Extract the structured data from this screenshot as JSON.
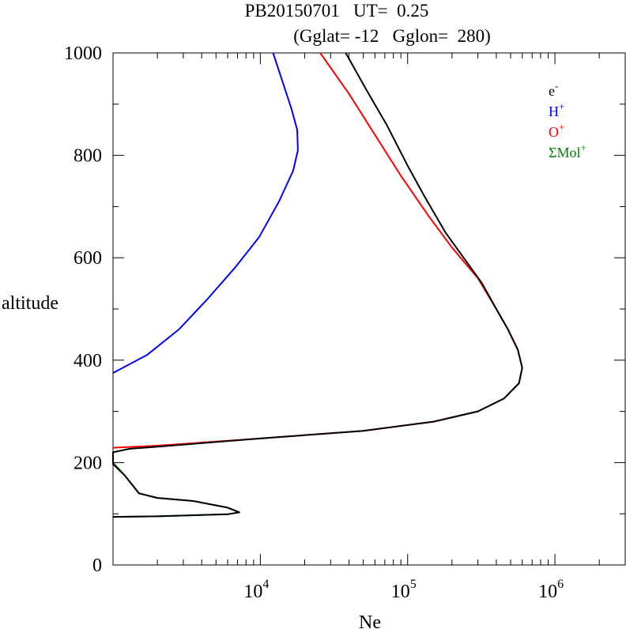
{
  "chart_data": {
    "type": "line",
    "title": "PB20150701   UT=  0.25",
    "subtitle": "(Gglat= -12   Gglon=  280)",
    "xlabel": "Ne",
    "ylabel": "altitude",
    "x_scale": "log",
    "xlim": [
      1000,
      3000000
    ],
    "ylim": [
      0,
      1000
    ],
    "x_major_ticks": [
      10000,
      100000,
      1000000
    ],
    "x_tick_labels": [
      {
        "base": "10",
        "exp": "4"
      },
      {
        "base": "10",
        "exp": "5"
      },
      {
        "base": "10",
        "exp": "6"
      }
    ],
    "y_major_ticks": [
      0,
      200,
      400,
      600,
      800,
      1000
    ],
    "y_tick_labels": [
      "0",
      "200",
      "400",
      "600",
      "800",
      "1000"
    ],
    "grid": false,
    "legend_position": "top-right",
    "legend": [
      {
        "base": "e",
        "sup": "-",
        "color": "#000000"
      },
      {
        "base": "H",
        "sup": "+",
        "color": "#0000ff"
      },
      {
        "base": "O",
        "sup": "+",
        "color": "#ff0000"
      },
      {
        "base": "ΣMol",
        "sup": "+",
        "color": "#008000"
      }
    ],
    "series": [
      {
        "color": "#0000ff",
        "points": [
          [
            1000,
            375
          ],
          [
            1700,
            410
          ],
          [
            2800,
            460
          ],
          [
            4400,
            520
          ],
          [
            6700,
            580
          ],
          [
            9800,
            640
          ],
          [
            13400,
            710
          ],
          [
            16700,
            770
          ],
          [
            18000,
            810
          ],
          [
            17800,
            850
          ],
          [
            16300,
            890
          ],
          [
            14300,
            940
          ],
          [
            12200,
            1000
          ]
        ]
      },
      {
        "color": "#ff0000",
        "points": [
          [
            1000,
            229
          ],
          [
            2000,
            233
          ],
          [
            10000,
            247
          ],
          [
            50000,
            262
          ],
          [
            150000,
            280
          ],
          [
            300000,
            300
          ],
          [
            450000,
            325
          ],
          [
            570000,
            355
          ],
          [
            600000,
            385
          ],
          [
            560000,
            420
          ],
          [
            480000,
            460
          ],
          [
            400000,
            500
          ],
          [
            300000,
            560
          ],
          [
            200000,
            620
          ],
          [
            140000,
            680
          ],
          [
            90000,
            760
          ],
          [
            60000,
            840
          ],
          [
            40000,
            920
          ],
          [
            25500,
            1000
          ]
        ]
      },
      {
        "color": "#008000",
        "points": [
          [
            1000,
            200
          ],
          [
            1200,
            175
          ],
          [
            1500,
            140
          ],
          [
            2000,
            131
          ],
          [
            3500,
            125
          ],
          [
            6000,
            112
          ],
          [
            7200,
            103
          ],
          [
            6000,
            99
          ],
          [
            2000,
            95
          ],
          [
            1000,
            94
          ]
        ]
      },
      {
        "color": "#000000",
        "points": [
          [
            1000,
            94
          ],
          [
            2000,
            95
          ],
          [
            6000,
            99
          ],
          [
            7200,
            103
          ],
          [
            6000,
            112
          ],
          [
            3500,
            125
          ],
          [
            2000,
            131
          ],
          [
            1500,
            140
          ],
          [
            1200,
            175
          ],
          [
            1000,
            197
          ],
          [
            1000,
            220
          ],
          [
            1300,
            227
          ],
          [
            1800,
            230
          ],
          [
            10000,
            247
          ],
          [
            50000,
            262
          ],
          [
            150000,
            280
          ],
          [
            300000,
            300
          ],
          [
            450000,
            325
          ],
          [
            570000,
            355
          ],
          [
            600000,
            385
          ],
          [
            560000,
            420
          ],
          [
            480000,
            460
          ],
          [
            400000,
            500
          ],
          [
            320000,
            550
          ],
          [
            240000,
            600
          ],
          [
            180000,
            650
          ],
          [
            130000,
            720
          ],
          [
            100000,
            780
          ],
          [
            72000,
            860
          ],
          [
            52000,
            930
          ],
          [
            38000,
            1000
          ]
        ]
      }
    ]
  }
}
